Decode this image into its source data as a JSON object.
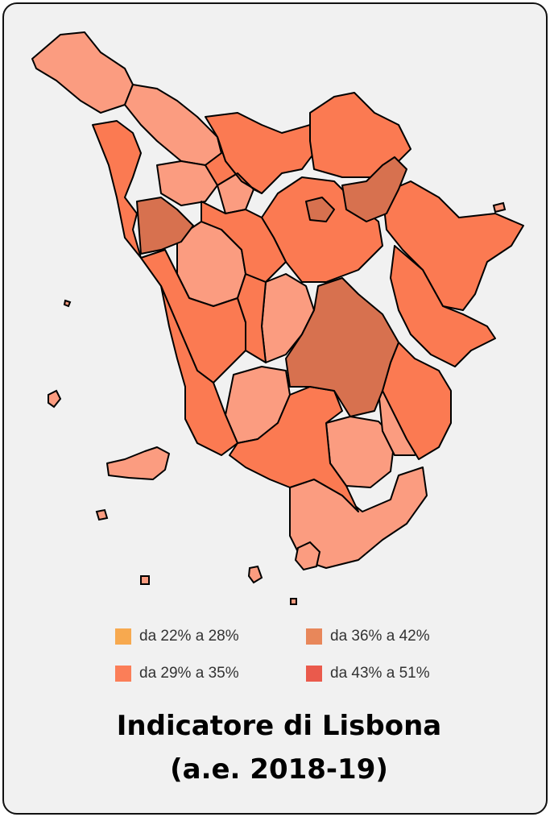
{
  "title_line1": "Indicatore di Lisbona",
  "title_line2": "(a.e. 2018-19)",
  "legend": [
    {
      "label": "da 22% a 28%",
      "color": "#f7a94f"
    },
    {
      "label": "da 36% a 42%",
      "color": "#e8875a"
    },
    {
      "label": "da 29% a 35%",
      "color": "#fb7e58"
    },
    {
      "label": "da 43% a 51%",
      "color": "#ea5a4c"
    }
  ],
  "region_colors": {
    "light": "#fb9c80",
    "medium": "#fb7a52",
    "dark": "#d7714f",
    "border": "#000000",
    "background": "#f1f1f1"
  }
}
